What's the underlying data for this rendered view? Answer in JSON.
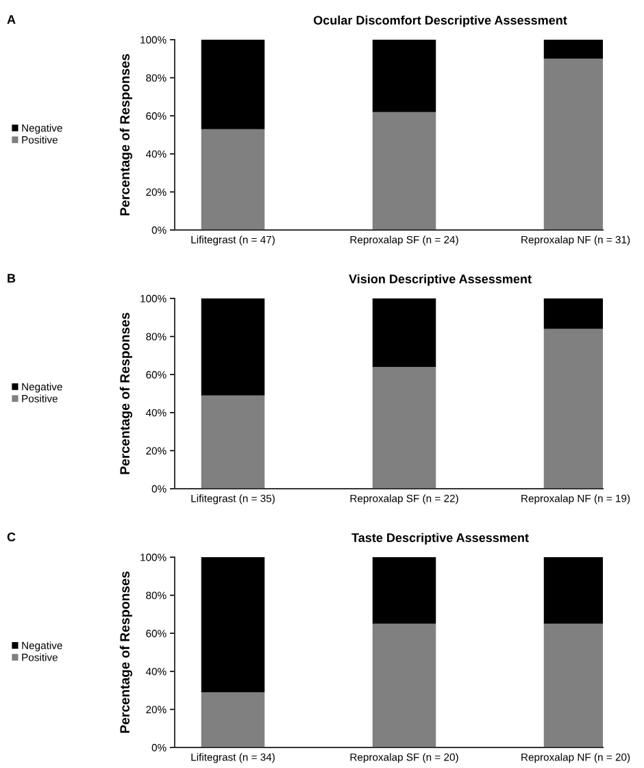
{
  "chart_data": [
    {
      "type": "bar",
      "stacked": true,
      "title": "Ocular Discomfort Descriptive Assessment",
      "ylabel": "Percentage of Responses",
      "annotations": [
        "A"
      ],
      "categories": [
        "Lifitegrast (n = 47)",
        "Reproxalap SF (n = 24)",
        "Reproxalap NF (n = 31)"
      ],
      "series": [
        {
          "name": "Positive",
          "color": "#808080",
          "values": [
            53,
            62,
            90
          ]
        },
        {
          "name": "Negative",
          "color": "#000000",
          "values": [
            47,
            38,
            10
          ]
        }
      ],
      "ylim": [
        0,
        100
      ],
      "yticks": [
        {
          "value": 0,
          "label": "0%"
        },
        {
          "value": 20,
          "label": "20%"
        },
        {
          "value": 40,
          "label": "40%"
        },
        {
          "value": 60,
          "label": "60%"
        },
        {
          "value": 80,
          "label": "80%"
        },
        {
          "value": 100,
          "label": "100%"
        }
      ],
      "legend": "left"
    },
    {
      "type": "bar",
      "stacked": true,
      "title": "Vision Descriptive Assessment",
      "ylabel": "Percentage of Responses",
      "annotations": [
        "B"
      ],
      "categories": [
        "Lifitegrast (n = 35)",
        "Reproxalap SF (n = 22)",
        "Reproxalap NF (n = 19)"
      ],
      "series": [
        {
          "name": "Positive",
          "color": "#808080",
          "values": [
            49,
            64,
            84
          ]
        },
        {
          "name": "Negative",
          "color": "#000000",
          "values": [
            51,
            36,
            16
          ]
        }
      ],
      "ylim": [
        0,
        100
      ],
      "yticks": [
        {
          "value": 0,
          "label": "0%"
        },
        {
          "value": 20,
          "label": "20%"
        },
        {
          "value": 40,
          "label": "40%"
        },
        {
          "value": 60,
          "label": "60%"
        },
        {
          "value": 80,
          "label": "80%"
        },
        {
          "value": 100,
          "label": "100%"
        }
      ],
      "legend": "left"
    },
    {
      "type": "bar",
      "stacked": true,
      "title": "Taste Descriptive Assessment",
      "ylabel": "Percentage of Responses",
      "annotations": [
        "C"
      ],
      "categories": [
        "Lifitegrast (n = 34)",
        "Reproxalap SF (n = 20)",
        "Reproxalap NF (n = 20)"
      ],
      "series": [
        {
          "name": "Positive",
          "color": "#808080",
          "values": [
            29,
            65,
            65
          ]
        },
        {
          "name": "Negative",
          "color": "#000000",
          "values": [
            71,
            35,
            35
          ]
        }
      ],
      "ylim": [
        0,
        100
      ],
      "yticks": [
        {
          "value": 0,
          "label": "0%"
        },
        {
          "value": 20,
          "label": "20%"
        },
        {
          "value": 40,
          "label": "40%"
        },
        {
          "value": 60,
          "label": "60%"
        },
        {
          "value": 80,
          "label": "80%"
        },
        {
          "value": 100,
          "label": "100%"
        }
      ],
      "legend": "left"
    }
  ]
}
